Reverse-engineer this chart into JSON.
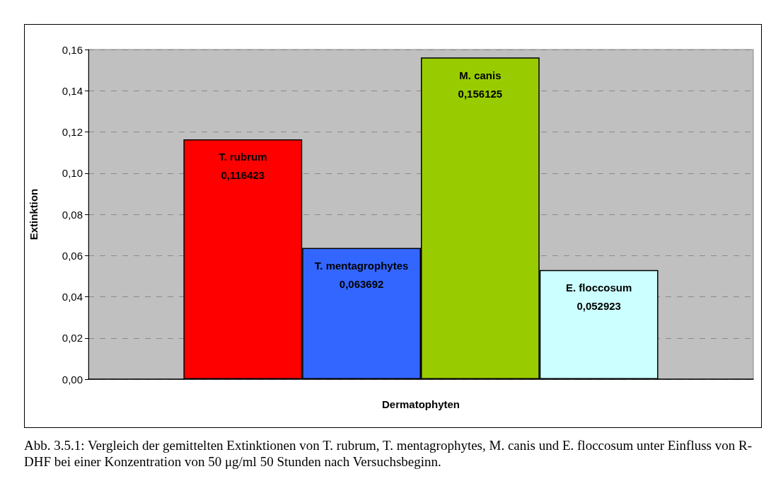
{
  "chart_data": {
    "type": "bar",
    "xlabel": "Dermatophyten",
    "ylabel": "Extinktion",
    "categories": [
      null
    ],
    "series": [
      {
        "name": "T. rubrum",
        "color": "#ff0000",
        "values": [
          0.116423
        ],
        "value_labels": [
          "0,116423"
        ]
      },
      {
        "name": "T. mentagrophytes",
        "color": "#3366ff",
        "values": [
          0.063692
        ],
        "value_labels": [
          "0,063692"
        ]
      },
      {
        "name": "M. canis",
        "color": "#99cc00",
        "values": [
          0.156125
        ],
        "value_labels": [
          "0,156125"
        ]
      },
      {
        "name": "E. floccosum",
        "color": "#ccffff",
        "values": [
          0.052923
        ],
        "value_labels": [
          "0,052923"
        ]
      }
    ],
    "ylim": [
      0,
      0.16
    ],
    "yticks": [
      {
        "value": 0,
        "label": "0,00"
      },
      {
        "value": 0.02,
        "label": "0,02"
      },
      {
        "value": 0.04,
        "label": "0,04"
      },
      {
        "value": 0.06,
        "label": "0,06"
      },
      {
        "value": 0.08,
        "label": "0,08"
      },
      {
        "value": 0.1,
        "label": "0,10"
      },
      {
        "value": 0.12,
        "label": "0,12"
      },
      {
        "value": 0.14,
        "label": "0,14"
      },
      {
        "value": 0.16,
        "label": "0,16"
      }
    ],
    "grid": "y",
    "legend": false,
    "annotations": [
      "Abb. 3.5.1: Vergleich der gemittelten Extinktionen von T. rubrum, T. mentagrophytes, M. canis und E. floccosum unter Einfluss von R-DHF bei einer Konzentration von 50 μg/ml 50 Stunden nach Versuchsbeginn."
    ]
  }
}
